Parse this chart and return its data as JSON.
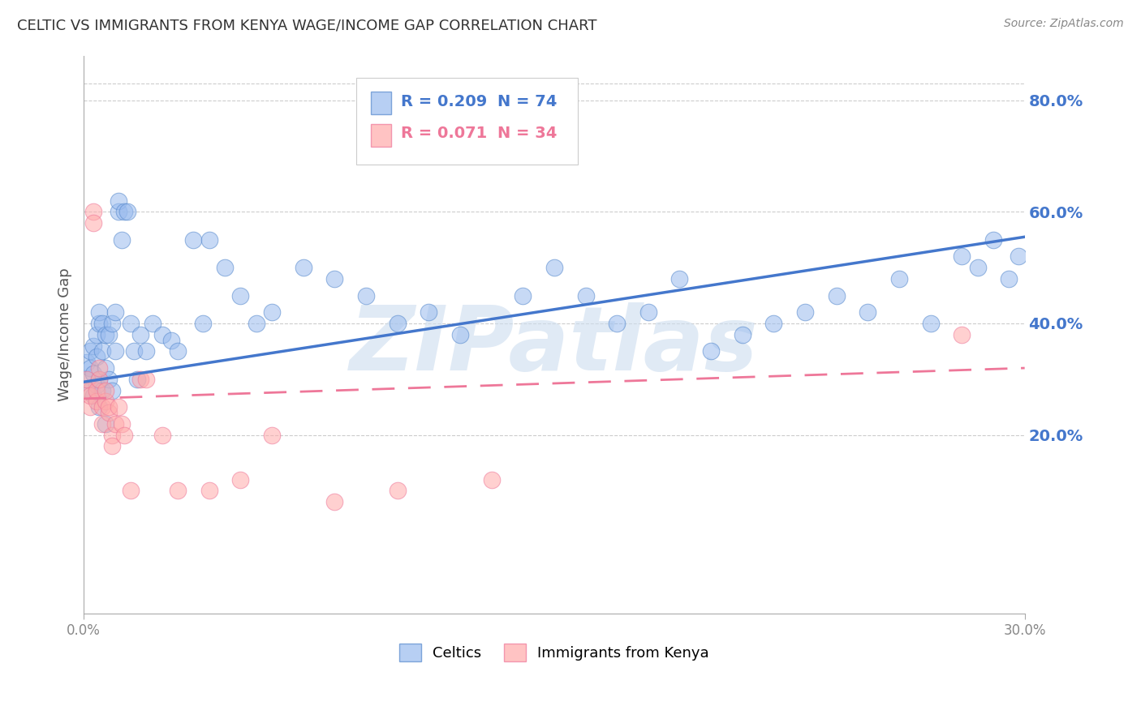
{
  "title": "CELTIC VS IMMIGRANTS FROM KENYA WAGE/INCOME GAP CORRELATION CHART",
  "source": "Source: ZipAtlas.com",
  "ylabel": "Wage/Income Gap",
  "xlim": [
    0.0,
    0.3
  ],
  "ylim": [
    -0.12,
    0.88
  ],
  "xtick_positions": [
    0.0,
    0.3
  ],
  "xtick_labels": [
    "0.0%",
    "30.0%"
  ],
  "yticks_right": [
    0.2,
    0.4,
    0.6,
    0.8
  ],
  "ytick_labels_right": [
    "20.0%",
    "40.0%",
    "60.0%",
    "80.0%"
  ],
  "blue_color": "#99BBEE",
  "pink_color": "#FFAAAA",
  "blue_edge_color": "#5588CC",
  "pink_edge_color": "#EE7799",
  "blue_line_color": "#4477CC",
  "pink_line_color": "#EE7799",
  "watermark": "ZIPatlas",
  "watermark_color": "#CCDDEF",
  "legend_blue_r": "R = 0.209",
  "legend_blue_n": "N = 74",
  "legend_pink_r": "R = 0.071",
  "legend_pink_n": "N = 34",
  "celtics_x": [
    0.001,
    0.001,
    0.002,
    0.002,
    0.002,
    0.003,
    0.003,
    0.003,
    0.004,
    0.004,
    0.004,
    0.005,
    0.005,
    0.005,
    0.005,
    0.006,
    0.006,
    0.006,
    0.007,
    0.007,
    0.007,
    0.008,
    0.008,
    0.009,
    0.009,
    0.01,
    0.01,
    0.011,
    0.011,
    0.012,
    0.013,
    0.014,
    0.015,
    0.016,
    0.017,
    0.018,
    0.02,
    0.022,
    0.025,
    0.028,
    0.03,
    0.035,
    0.038,
    0.04,
    0.045,
    0.05,
    0.055,
    0.06,
    0.07,
    0.08,
    0.09,
    0.1,
    0.11,
    0.12,
    0.13,
    0.14,
    0.15,
    0.16,
    0.17,
    0.18,
    0.19,
    0.2,
    0.21,
    0.22,
    0.23,
    0.24,
    0.25,
    0.26,
    0.27,
    0.28,
    0.285,
    0.29,
    0.295,
    0.298
  ],
  "celtics_y": [
    0.3,
    0.33,
    0.28,
    0.32,
    0.35,
    0.27,
    0.31,
    0.36,
    0.29,
    0.34,
    0.38,
    0.25,
    0.3,
    0.4,
    0.42,
    0.28,
    0.35,
    0.4,
    0.22,
    0.32,
    0.38,
    0.3,
    0.38,
    0.28,
    0.4,
    0.35,
    0.42,
    0.6,
    0.62,
    0.55,
    0.6,
    0.6,
    0.4,
    0.35,
    0.3,
    0.38,
    0.35,
    0.4,
    0.38,
    0.37,
    0.35,
    0.55,
    0.4,
    0.55,
    0.5,
    0.45,
    0.4,
    0.42,
    0.5,
    0.48,
    0.45,
    0.4,
    0.42,
    0.38,
    0.72,
    0.45,
    0.5,
    0.45,
    0.4,
    0.42,
    0.48,
    0.35,
    0.38,
    0.4,
    0.42,
    0.45,
    0.42,
    0.48,
    0.4,
    0.52,
    0.5,
    0.55,
    0.48,
    0.52
  ],
  "kenya_x": [
    0.001,
    0.001,
    0.002,
    0.002,
    0.003,
    0.003,
    0.004,
    0.004,
    0.005,
    0.005,
    0.006,
    0.006,
    0.007,
    0.007,
    0.008,
    0.008,
    0.009,
    0.009,
    0.01,
    0.011,
    0.012,
    0.013,
    0.015,
    0.018,
    0.02,
    0.025,
    0.03,
    0.04,
    0.05,
    0.06,
    0.08,
    0.1,
    0.13,
    0.28
  ],
  "kenya_y": [
    0.28,
    0.3,
    0.25,
    0.27,
    0.6,
    0.58,
    0.26,
    0.28,
    0.3,
    0.32,
    0.22,
    0.25,
    0.26,
    0.28,
    0.24,
    0.25,
    0.2,
    0.18,
    0.22,
    0.25,
    0.22,
    0.2,
    0.1,
    0.3,
    0.3,
    0.2,
    0.1,
    0.1,
    0.12,
    0.2,
    0.08,
    0.1,
    0.12,
    0.38
  ],
  "blue_trendline_x": [
    0.0,
    0.3
  ],
  "blue_trendline_y": [
    0.295,
    0.555
  ],
  "pink_trendline_x": [
    0.0,
    0.3
  ],
  "pink_trendline_y": [
    0.265,
    0.32
  ]
}
